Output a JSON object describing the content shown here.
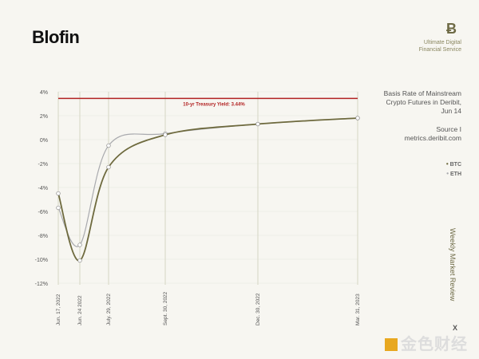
{
  "brand": {
    "logo": "Blofin",
    "tagline": "Ultimate Digital Financial Service",
    "vertical_title": "Weekly Market Review",
    "x_mark": "X",
    "watermark": "金色财经"
  },
  "description": "Basis Rate of Mainstream Crypto Futures in Deribit, Jun 14",
  "source": "Source I metrics.deribit.com",
  "chart_data": {
    "type": "line",
    "categories": [
      "Jun. 17, 2022",
      "Jun. 24 2022",
      "July. 29, 2022",
      "Sept. 30, 2022",
      "Dec. 30, 2022",
      "Mar. 31, 2023"
    ],
    "series": [
      {
        "name": "BTC",
        "color": "#6e6a3e",
        "values": [
          -4.5,
          -10.1,
          -2.3,
          0.4,
          1.3,
          1.8
        ]
      },
      {
        "name": "ETH",
        "color": "#a9aaae",
        "values": [
          -5.7,
          -8.8,
          -0.5,
          0.5,
          1.3,
          1.8
        ]
      }
    ],
    "yticks": [
      "4%",
      "2%",
      "0%",
      "-2%",
      "-4%",
      "-6%",
      "-8%",
      "-10%",
      "-12%"
    ],
    "ylim": [
      -12,
      4
    ],
    "reference_line": {
      "value": 3.44,
      "label": "10-yr Treasury Yield: 3.44%",
      "color": "#b22222"
    },
    "grid": true,
    "legend": "right"
  }
}
